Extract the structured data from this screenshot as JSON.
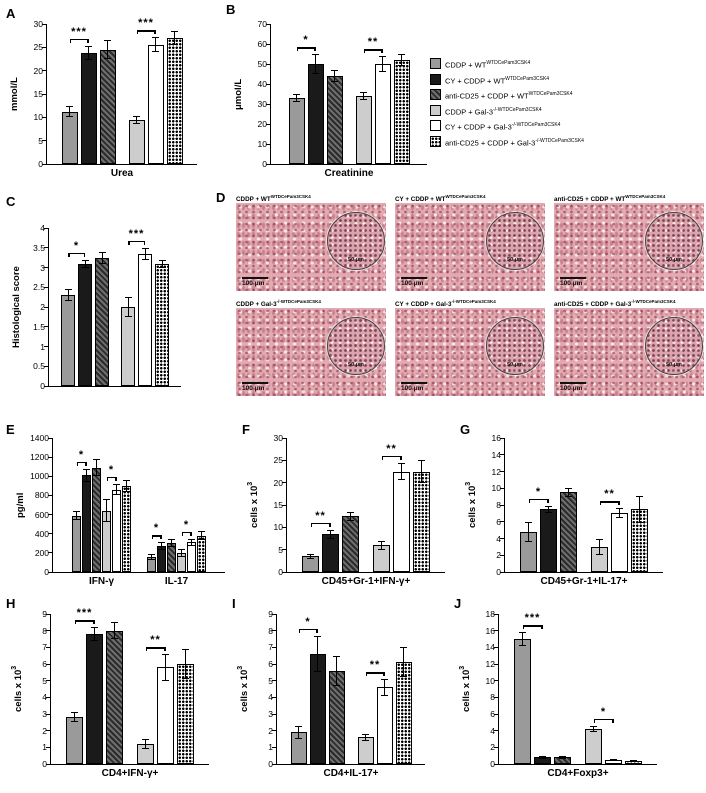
{
  "figure": {
    "background": "#ffffff",
    "groups": [
      {
        "base": "CDDP + WT",
        "sup": "WTDCePam3CSK4"
      },
      {
        "base": "CY + CDDP + WT",
        "sup": "WTDCePam3CSK4"
      },
      {
        "base": "anti-CD25 + CDDP + WT",
        "sup": "WTDCePam3CSK4"
      },
      {
        "base": "CDDP + Gal-3",
        "sup": "-/-WTDCePam3CSK4"
      },
      {
        "base": "CY + CDDP + Gal-3",
        "sup": "-/-WTDCePam3CSK4"
      },
      {
        "base": "anti-CD25 + CDDP + Gal-3",
        "sup": "-/-WTDCePam3CSK4"
      }
    ],
    "bar_style_colors": {
      "group1": "#9a9a9a",
      "group2": "#1a1a1a",
      "group3": "dark-diagonal-hatch",
      "group4": "#cdcdcd",
      "group5": "#ffffff",
      "group6": "black-dots-on-white"
    }
  },
  "chart_data": [
    {
      "panel": "A",
      "type": "bar",
      "ylabel": "mmol/L",
      "ylim": [
        0,
        30
      ],
      "ytick": 5,
      "categories": [
        {
          "label": "Urea",
          "values": [
            11.2,
            23.8,
            24.5,
            9.4,
            25.6,
            26.9
          ],
          "errors": [
            1.2,
            1.5,
            2.0,
            0.8,
            1.6,
            1.5
          ]
        }
      ],
      "sig": [
        {
          "cat": 0,
          "pair": [
            0,
            1
          ],
          "label": "***"
        },
        {
          "cat": 0,
          "pair": [
            3,
            4
          ],
          "label": "***"
        }
      ]
    },
    {
      "panel": "B",
      "type": "bar",
      "ylabel": "μmol/L",
      "ylim": [
        0,
        70
      ],
      "ytick": 10,
      "categories": [
        {
          "label": "Creatinine",
          "values": [
            33,
            50,
            44,
            34,
            50,
            52
          ],
          "errors": [
            2,
            5,
            3,
            2,
            4,
            3
          ]
        }
      ],
      "sig": [
        {
          "cat": 0,
          "pair": [
            0,
            1
          ],
          "label": "*"
        },
        {
          "cat": 0,
          "pair": [
            3,
            4
          ],
          "label": "**"
        }
      ]
    },
    {
      "panel": "C",
      "type": "bar",
      "ylabel": "Histological score",
      "ylim": [
        0,
        4
      ],
      "ytick": 0.5,
      "categories": [
        {
          "label": null,
          "values": [
            2.3,
            3.1,
            3.25,
            2.0,
            3.35,
            3.1
          ],
          "errors": [
            0.15,
            0.1,
            0.15,
            0.25,
            0.15,
            0.1
          ]
        }
      ],
      "sig": [
        {
          "cat": 0,
          "pair": [
            0,
            1
          ],
          "label": "*"
        },
        {
          "cat": 0,
          "pair": [
            3,
            4
          ],
          "label": "***"
        }
      ]
    },
    {
      "panel": "E",
      "type": "bar",
      "ylabel": "pg/ml",
      "ylim": [
        0,
        1400
      ],
      "ytick": 200,
      "categories": [
        {
          "label": "IFN-γ",
          "values": [
            590,
            1010,
            1090,
            640,
            860,
            900
          ],
          "errors": [
            50,
            70,
            90,
            120,
            60,
            60
          ]
        },
        {
          "label": "IL-17",
          "values": [
            160,
            270,
            300,
            200,
            310,
            380
          ],
          "errors": [
            30,
            40,
            40,
            40,
            40,
            50
          ]
        }
      ],
      "sig": [
        {
          "cat": 0,
          "pair": [
            0,
            1
          ],
          "label": "*"
        },
        {
          "cat": 0,
          "pair": [
            3,
            4
          ],
          "label": "*"
        },
        {
          "cat": 1,
          "pair": [
            0,
            1
          ],
          "label": "*"
        },
        {
          "cat": 1,
          "pair": [
            3,
            4
          ],
          "label": "*"
        }
      ]
    },
    {
      "panel": "F",
      "type": "bar",
      "ylabel": "cells x 10",
      "ylabel_sup": "3",
      "ylim": [
        0,
        30
      ],
      "ytick": 5,
      "categories": [
        {
          "label": "CD45+Gr-1+IFN-γ+",
          "values": [
            3.5,
            8.5,
            12.5,
            6.0,
            22.5,
            22.5
          ],
          "errors": [
            0.5,
            1.0,
            1.0,
            1.0,
            2.0,
            2.5
          ]
        }
      ],
      "sig": [
        {
          "cat": 0,
          "pair": [
            0,
            1
          ],
          "label": "**"
        },
        {
          "cat": 0,
          "pair": [
            3,
            4
          ],
          "label": "**"
        }
      ]
    },
    {
      "panel": "G",
      "type": "bar",
      "ylabel": "cells x 10",
      "ylabel_sup": "3",
      "ylim": [
        0,
        16
      ],
      "ytick": 2,
      "categories": [
        {
          "label": "CD45+Gr-1+IL-17+",
          "values": [
            4.8,
            7.5,
            9.5,
            3.0,
            7.0,
            7.5
          ],
          "errors": [
            1.2,
            0.4,
            0.5,
            1.0,
            0.6,
            1.6
          ]
        }
      ],
      "sig": [
        {
          "cat": 0,
          "pair": [
            0,
            1
          ],
          "label": "*"
        },
        {
          "cat": 0,
          "pair": [
            3,
            4
          ],
          "label": "**"
        }
      ]
    },
    {
      "panel": "H",
      "type": "bar",
      "ylabel": "cells x 10",
      "ylabel_sup": "3",
      "ylim": [
        0,
        9
      ],
      "ytick": 1,
      "categories": [
        {
          "label": "CD4+IFN-γ+",
          "values": [
            2.8,
            7.8,
            8.0,
            1.2,
            5.8,
            6.0
          ],
          "errors": [
            0.3,
            0.4,
            0.5,
            0.3,
            0.8,
            0.9
          ]
        }
      ],
      "sig": [
        {
          "cat": 0,
          "pair": [
            0,
            1
          ],
          "label": "***"
        },
        {
          "cat": 0,
          "pair": [
            3,
            4
          ],
          "label": "**"
        }
      ]
    },
    {
      "panel": "I",
      "type": "bar",
      "ylabel": "cells x 10",
      "ylabel_sup": "3",
      "ylim": [
        0,
        9
      ],
      "ytick": 1,
      "categories": [
        {
          "label": "CD4+IL-17+",
          "values": [
            1.9,
            6.6,
            5.6,
            1.6,
            4.6,
            6.1
          ],
          "errors": [
            0.4,
            1.1,
            0.9,
            0.2,
            0.5,
            0.9
          ]
        }
      ],
      "sig": [
        {
          "cat": 0,
          "pair": [
            0,
            1
          ],
          "label": "*"
        },
        {
          "cat": 0,
          "pair": [
            3,
            4
          ],
          "label": "**"
        }
      ]
    },
    {
      "panel": "J",
      "type": "bar",
      "ylabel": "cells x 10",
      "ylabel_sup": "3",
      "ylim": [
        0,
        18
      ],
      "ytick": 2,
      "categories": [
        {
          "label": "CD4+Foxp3+",
          "values": [
            15.0,
            0.8,
            0.8,
            4.2,
            0.5,
            0.4
          ],
          "errors": [
            0.8,
            0.2,
            0.2,
            0.4,
            0.1,
            0.1
          ]
        }
      ],
      "sig": [
        {
          "cat": 0,
          "pair": [
            0,
            1
          ],
          "label": "***"
        },
        {
          "cat": 0,
          "pair": [
            3,
            4
          ],
          "label": "*"
        }
      ]
    }
  ],
  "histology": {
    "panel": "D",
    "cells": [
      {
        "base": "CDDP + WT",
        "sup": "WTDCePam3CSK4",
        "scale": "100 μm",
        "inset_scale": "50 μm"
      },
      {
        "base": "CY + CDDP + WT",
        "sup": "WTDCePam3CSK4",
        "scale": "100 μm",
        "inset_scale": "50 μm"
      },
      {
        "base": "anti-CD25 + CDDP + WT",
        "sup": "WTDCePam3CSK4",
        "scale": "100 μm",
        "inset_scale": "50 μm"
      },
      {
        "base": "CDDP + Gal-3",
        "sup": "-/-WTDCePam3CSK4",
        "scale": "100 μm",
        "inset_scale": "50 μm"
      },
      {
        "base": "CY + CDDP + Gal-3",
        "sup": "-/-WTDCePam3CSK4",
        "scale": "100 μm",
        "inset_scale": "50 μm"
      },
      {
        "base": "anti-CD25 + CDDP + Gal-3",
        "sup": "-/-WTDCePam3CSK4",
        "scale": "100 μm",
        "inset_scale": "50 μm"
      }
    ]
  }
}
